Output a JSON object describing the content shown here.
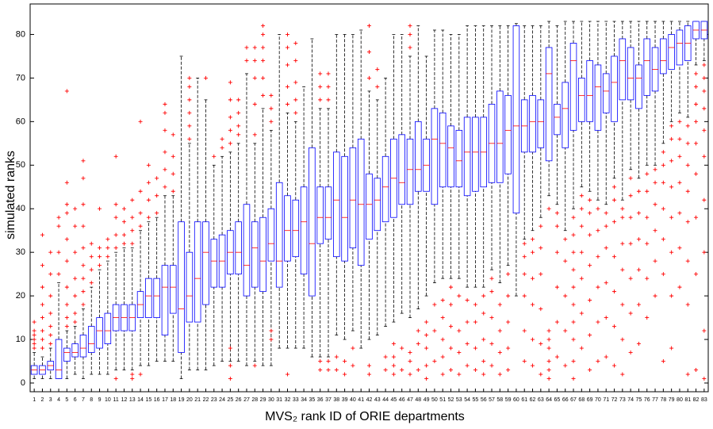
{
  "chart_data": {
    "type": "box",
    "xlabel": "MVS₂ rank ID of ORIE departments",
    "ylabel": "simulated ranks",
    "categories": [
      "1",
      "2",
      "3",
      "4",
      "5",
      "6",
      "7",
      "8",
      "9",
      "10",
      "11",
      "12",
      "13",
      "14",
      "15",
      "16",
      "17",
      "18",
      "19",
      "20",
      "21",
      "22",
      "23",
      "24",
      "25",
      "26",
      "27",
      "28",
      "29",
      "30",
      "31",
      "32",
      "33",
      "34",
      "35",
      "36",
      "37",
      "38",
      "39",
      "40",
      "41",
      "42",
      "43",
      "44",
      "45",
      "46",
      "47",
      "48",
      "49",
      "50",
      "51",
      "52",
      "53",
      "54",
      "55",
      "56",
      "57",
      "58",
      "59",
      "60",
      "61",
      "62",
      "63",
      "64",
      "65",
      "66",
      "67",
      "68",
      "69",
      "70",
      "71",
      "72",
      "73",
      "74",
      "75",
      "76",
      "77",
      "78",
      "79",
      "80",
      "81",
      "82",
      "83"
    ],
    "ylim": [
      -2,
      87
    ],
    "yticks": [
      0,
      10,
      20,
      30,
      40,
      50,
      60,
      70,
      80
    ],
    "box_color": "#0000ff",
    "median_color": "#ff0000",
    "whisker_color": "#000000",
    "flier_color": "#ff0000",
    "boxes": [
      {
        "whislo": 1,
        "q1": 2,
        "med": 3,
        "q3": 4,
        "whishi": 7,
        "fliers": [
          8,
          9,
          10,
          11,
          12,
          14
        ]
      },
      {
        "whislo": 1,
        "q1": 2,
        "med": 3,
        "q3": 4,
        "whishi": 6,
        "fliers": [
          8,
          10,
          12,
          15,
          18,
          22,
          27,
          34
        ]
      },
      {
        "whislo": 1,
        "q1": 3,
        "med": 4,
        "q3": 5,
        "whishi": 8,
        "fliers": [
          9,
          11,
          13,
          16,
          20,
          25,
          30
        ]
      },
      {
        "whislo": 1,
        "q1": 1,
        "med": 3,
        "q3": 10,
        "whishi": 23,
        "fliers": [
          25,
          30,
          36,
          38
        ]
      },
      {
        "whislo": 1,
        "q1": 5,
        "med": 7,
        "q3": 8,
        "whishi": 12,
        "fliers": [
          13,
          15,
          18,
          22,
          28,
          33,
          39,
          41,
          46,
          67
        ]
      },
      {
        "whislo": 2,
        "q1": 6,
        "med": 7,
        "q3": 9,
        "whishi": 13,
        "fliers": [
          14,
          16,
          20,
          24,
          30,
          36,
          40
        ]
      },
      {
        "whislo": 1,
        "q1": 6,
        "med": 8,
        "q3": 11,
        "whishi": 17,
        "fliers": [
          18,
          21,
          24,
          27,
          31,
          36,
          41,
          47,
          51
        ]
      },
      {
        "whislo": 2,
        "q1": 7,
        "med": 9,
        "q3": 13,
        "whishi": 22,
        "fliers": [
          23,
          26,
          29,
          32
        ]
      },
      {
        "whislo": 2,
        "q1": 8,
        "med": 12,
        "q3": 15,
        "whishi": 26,
        "fliers": [
          27,
          29,
          31,
          40
        ]
      },
      {
        "whislo": 2,
        "q1": 9,
        "med": 12,
        "q3": 16,
        "whishi": 28,
        "fliers": [
          29,
          31,
          33
        ]
      },
      {
        "whislo": 3,
        "q1": 12,
        "med": 15,
        "q3": 18,
        "whishi": 30,
        "fliers": [
          1,
          31,
          34,
          38,
          41,
          52
        ]
      },
      {
        "whislo": 3,
        "q1": 12,
        "med": 15,
        "q3": 18,
        "whishi": 31,
        "fliers": [
          32,
          34,
          37,
          40
        ]
      },
      {
        "whislo": 3,
        "q1": 12,
        "med": 15,
        "q3": 18,
        "whishi": 31,
        "fliers": [
          1,
          2,
          32,
          35,
          38,
          42
        ]
      },
      {
        "whislo": 4,
        "q1": 15,
        "med": 18,
        "q3": 21,
        "whishi": 35,
        "fliers": [
          2,
          36,
          39,
          44,
          60
        ]
      },
      {
        "whislo": 4,
        "q1": 15,
        "med": 20,
        "q3": 24,
        "whishi": 37,
        "fliers": [
          38,
          42,
          46,
          50
        ]
      },
      {
        "whislo": 5,
        "q1": 15,
        "med": 20,
        "q3": 24,
        "whishi": 38,
        "fliers": [
          39,
          43,
          47
        ]
      },
      {
        "whislo": 5,
        "q1": 11,
        "med": 22,
        "q3": 27,
        "whishi": 43,
        "fliers": [
          45,
          49,
          53,
          58,
          62,
          64
        ]
      },
      {
        "whislo": 5,
        "q1": 16,
        "med": 22,
        "q3": 27,
        "whishi": 43,
        "fliers": [
          44,
          48,
          52,
          57
        ]
      },
      {
        "whislo": 1,
        "q1": 7,
        "med": 17,
        "q3": 37,
        "whishi": 75,
        "fliers": []
      },
      {
        "whislo": 3,
        "q1": 14,
        "med": 20,
        "q3": 30,
        "whishi": 55,
        "fliers": [
          56,
          59,
          62,
          65,
          68,
          70
        ]
      },
      {
        "whislo": 3,
        "q1": 14,
        "med": 24,
        "q3": 37,
        "whishi": 70,
        "fliers": []
      },
      {
        "whislo": 3,
        "q1": 18,
        "med": 30,
        "q3": 37,
        "whishi": 65,
        "fliers": [
          70
        ]
      },
      {
        "whislo": 4,
        "q1": 22,
        "med": 28,
        "q3": 33,
        "whishi": 50,
        "fliers": [
          52
        ]
      },
      {
        "whislo": 5,
        "q1": 22,
        "med": 28,
        "q3": 34,
        "whishi": 52,
        "fliers": [
          54,
          56
        ]
      },
      {
        "whislo": 5,
        "q1": 25,
        "med": 30,
        "q3": 35,
        "whishi": 53,
        "fliers": [
          1,
          4,
          8,
          55,
          58,
          61,
          65,
          69
        ]
      },
      {
        "whislo": 5,
        "q1": 25,
        "med": 30,
        "q3": 37,
        "whishi": 55,
        "fliers": [
          57,
          59,
          62,
          65
        ]
      },
      {
        "whislo": 4,
        "q1": 20,
        "med": 27,
        "q3": 41,
        "whishi": 71,
        "fliers": [
          74,
          77
        ]
      },
      {
        "whislo": 5,
        "q1": 22,
        "med": 31,
        "q3": 37,
        "whishi": 55,
        "fliers": [
          4,
          57,
          64,
          70,
          74,
          77
        ]
      },
      {
        "whislo": 4,
        "q1": 21,
        "med": 28,
        "q3": 38,
        "whishi": 63,
        "fliers": [
          66,
          70,
          74,
          77,
          80,
          82
        ]
      },
      {
        "whislo": 4,
        "q1": 28,
        "med": 32,
        "q3": 40,
        "whishi": 58,
        "fliers": [
          10,
          12,
          60,
          63,
          66
        ]
      },
      {
        "whislo": 8,
        "q1": 22,
        "med": 28,
        "q3": 46,
        "whishi": 80,
        "fliers": []
      },
      {
        "whislo": 8,
        "q1": 28,
        "med": 35,
        "q3": 43,
        "whishi": 62,
        "fliers": [
          2,
          64,
          68,
          73,
          77,
          80
        ]
      },
      {
        "whislo": 8,
        "q1": 29,
        "med": 35,
        "q3": 42,
        "whishi": 60,
        "fliers": [
          62,
          65,
          69,
          74,
          78
        ]
      },
      {
        "whislo": 8,
        "q1": 25,
        "med": 37,
        "q3": 45,
        "whishi": 68,
        "fliers": []
      },
      {
        "whislo": 6,
        "q1": 20,
        "med": 32,
        "q3": 54,
        "whishi": 79,
        "fliers": []
      },
      {
        "whislo": 6,
        "q1": 32,
        "med": 38,
        "q3": 45,
        "whishi": 63,
        "fliers": [
          3,
          5,
          65,
          68,
          71
        ]
      },
      {
        "whislo": 6,
        "q1": 33,
        "med": 38,
        "q3": 45,
        "whishi": 63,
        "fliers": [
          3,
          5,
          65,
          68,
          71
        ]
      },
      {
        "whislo": 11,
        "q1": 29,
        "med": 42,
        "q3": 53,
        "whishi": 80,
        "fliers": [
          3,
          6
        ]
      },
      {
        "whislo": 10,
        "q1": 28,
        "med": 38,
        "q3": 52,
        "whishi": 80,
        "fliers": [
          2,
          5
        ]
      },
      {
        "whislo": 12,
        "q1": 31,
        "med": 42,
        "q3": 54,
        "whishi": 80,
        "fliers": [
          4,
          8
        ]
      },
      {
        "whislo": 8,
        "q1": 27,
        "med": 41,
        "q3": 56,
        "whishi": 81,
        "fliers": []
      },
      {
        "whislo": 10,
        "q1": 33,
        "med": 41,
        "q3": 48,
        "whishi": 67,
        "fliers": [
          2,
          4,
          70,
          76,
          82
        ]
      },
      {
        "whislo": 11,
        "q1": 35,
        "med": 42,
        "q3": 47,
        "whishi": 65,
        "fliers": [
          68,
          72
        ]
      },
      {
        "whislo": 13,
        "q1": 37,
        "med": 45,
        "q3": 52,
        "whishi": 70,
        "fliers": [
          3,
          6
        ]
      },
      {
        "whislo": 14,
        "q1": 38,
        "med": 47,
        "q3": 56,
        "whishi": 80,
        "fliers": [
          2,
          4,
          6,
          9
        ]
      },
      {
        "whislo": 16,
        "q1": 41,
        "med": 46,
        "q3": 57,
        "whishi": 80,
        "fliers": [
          3,
          8
        ]
      },
      {
        "whislo": 15,
        "q1": 41,
        "med": 49,
        "q3": 56,
        "whishi": 75,
        "fliers": [
          2,
          5,
          7,
          77,
          80,
          82
        ]
      },
      {
        "whislo": 17,
        "q1": 44,
        "med": 49,
        "q3": 60,
        "whishi": 82,
        "fliers": [
          3,
          9,
          12
        ]
      },
      {
        "whislo": 20,
        "q1": 44,
        "med": 50,
        "q3": 56,
        "whishi": 75,
        "fliers": [
          1,
          4,
          8,
          11,
          14
        ]
      },
      {
        "whislo": 23,
        "q1": 41,
        "med": 56,
        "q3": 63,
        "whishi": 81,
        "fliers": [
          5,
          12,
          18
        ]
      },
      {
        "whislo": 24,
        "q1": 45,
        "med": 55,
        "q3": 62,
        "whishi": 81,
        "fliers": [
          2,
          6,
          10,
          15,
          19
        ]
      },
      {
        "whislo": 24,
        "q1": 45,
        "med": 54,
        "q3": 59,
        "whishi": 80,
        "fliers": [
          3,
          8,
          13,
          18,
          22
        ]
      },
      {
        "whislo": 24,
        "q1": 45,
        "med": 51,
        "q3": 58,
        "whishi": 80,
        "fliers": [
          2,
          7,
          12,
          20
        ]
      },
      {
        "whislo": 22,
        "q1": 43,
        "med": 53,
        "q3": 61,
        "whishi": 82,
        "fliers": [
          4,
          9,
          14,
          19
        ]
      },
      {
        "whislo": 22,
        "q1": 44,
        "med": 53,
        "q3": 61,
        "whishi": 82,
        "fliers": [
          3,
          8,
          14,
          18
        ]
      },
      {
        "whislo": 22,
        "q1": 45,
        "med": 53,
        "q3": 61,
        "whishi": 82,
        "fliers": [
          2,
          5,
          10,
          16,
          20
        ]
      },
      {
        "whislo": 26,
        "q1": 46,
        "med": 55,
        "q3": 64,
        "whishi": 82,
        "fliers": [
          4,
          9,
          15,
          21,
          24
        ]
      },
      {
        "whislo": 23,
        "q1": 46,
        "med": 55,
        "q3": 67,
        "whishi": 82,
        "fliers": [
          2,
          7,
          12,
          18
        ]
      },
      {
        "whislo": 27,
        "q1": 48,
        "med": 58,
        "q3": 66,
        "whishi": 82,
        "fliers": [
          3,
          8,
          14,
          20,
          25
        ]
      },
      {
        "whislo": 20,
        "q1": 39,
        "med": 59,
        "q3": 82,
        "whishi": 82.5,
        "fliers": []
      },
      {
        "whislo": 33,
        "q1": 53,
        "med": 59,
        "q3": 65,
        "whishi": 82,
        "fliers": [
          5,
          12,
          20,
          25,
          29,
          32
        ]
      },
      {
        "whislo": 35,
        "q1": 53,
        "med": 60,
        "q3": 66,
        "whishi": 82,
        "fliers": [
          4,
          10,
          18,
          24,
          30,
          33
        ]
      },
      {
        "whislo": 38,
        "q1": 54,
        "med": 60,
        "q3": 65,
        "whishi": 82,
        "fliers": [
          2,
          9,
          17,
          25,
          31,
          36
        ]
      },
      {
        "whislo": 43,
        "q1": 51,
        "med": 71,
        "q3": 77,
        "whishi": 83,
        "fliers": [
          1,
          3,
          5,
          8,
          10,
          12,
          40
        ]
      },
      {
        "whislo": 41,
        "q1": 57,
        "med": 61,
        "q3": 64,
        "whishi": 82,
        "fliers": [
          6,
          14,
          22,
          30,
          36,
          39
        ]
      },
      {
        "whislo": 35,
        "q1": 54,
        "med": 63,
        "q3": 69,
        "whishi": 83,
        "fliers": [
          4,
          12,
          20,
          28,
          33
        ]
      },
      {
        "whislo": 40,
        "q1": 58,
        "med": 74,
        "q3": 78,
        "whishi": 83,
        "fliers": [
          1,
          5,
          10,
          14,
          18,
          22,
          26,
          30,
          34,
          38
        ]
      },
      {
        "whislo": 45,
        "q1": 60,
        "med": 66,
        "q3": 70,
        "whishi": 83,
        "fliers": [
          8,
          16,
          24,
          30,
          36,
          40,
          43
        ]
      },
      {
        "whislo": 44,
        "q1": 60,
        "med": 66,
        "q3": 74,
        "whishi": 83,
        "fliers": [
          3,
          11,
          19,
          27,
          34,
          39,
          42
        ]
      },
      {
        "whislo": 42,
        "q1": 58,
        "med": 68,
        "q3": 73,
        "whishi": 83,
        "fliers": [
          5,
          14,
          22,
          29,
          35,
          40
        ]
      },
      {
        "whislo": 41,
        "q1": 62,
        "med": 67,
        "q3": 71,
        "whishi": 83,
        "fliers": [
          6,
          15,
          23,
          31,
          36,
          39
        ]
      },
      {
        "whislo": 47,
        "q1": 60,
        "med": 69,
        "q3": 75,
        "whishi": 83,
        "fliers": [
          4,
          13,
          21,
          29,
          37,
          42,
          45
        ]
      },
      {
        "whislo": 42,
        "q1": 65,
        "med": 74,
        "q3": 79,
        "whishi": 83,
        "fliers": [
          2,
          10,
          18,
          26,
          32,
          38,
          40
        ]
      },
      {
        "whislo": 49,
        "q1": 65,
        "med": 70,
        "q3": 77,
        "whishi": 83,
        "fliers": [
          7,
          16,
          24,
          32,
          38,
          43,
          47
        ]
      },
      {
        "whislo": 47,
        "q1": 63,
        "med": 70,
        "q3": 73,
        "whishi": 83,
        "fliers": [
          9,
          18,
          26,
          33,
          39,
          44
        ]
      },
      {
        "whislo": 50,
        "q1": 66,
        "med": 74,
        "q3": 79,
        "whishi": 83,
        "fliers": [
          15,
          24,
          32,
          38,
          44,
          48
        ]
      },
      {
        "whislo": 50,
        "q1": 67,
        "med": 72,
        "q3": 77,
        "whishi": 83,
        "fliers": [
          20,
          28,
          35,
          41,
          46,
          49
        ]
      },
      {
        "whislo": 55,
        "q1": 71,
        "med": 74,
        "q3": 79,
        "whishi": 83,
        "fliers": [
          5,
          25,
          33,
          40,
          46,
          50,
          53
        ]
      },
      {
        "whislo": 60,
        "q1": 72,
        "med": 77,
        "q3": 80,
        "whishi": 83,
        "fliers": [
          8,
          20,
          30,
          38,
          45,
          51,
          56,
          59
        ]
      },
      {
        "whislo": 62,
        "q1": 73,
        "med": 78,
        "q3": 81,
        "whishi": 83,
        "fliers": [
          22,
          31,
          39,
          46,
          52,
          56,
          60
        ]
      },
      {
        "whislo": 61,
        "q1": 74,
        "med": 78,
        "q3": 82,
        "whishi": 83,
        "fliers": [
          2,
          18,
          28,
          37,
          44,
          50,
          55,
          59
        ]
      },
      {
        "whislo": 73,
        "q1": 79,
        "med": 81,
        "q3": 83,
        "whishi": 83,
        "fliers": [
          3,
          25,
          38,
          48,
          55,
          60,
          64,
          68,
          71
        ]
      },
      {
        "whislo": 74,
        "q1": 79,
        "med": 81,
        "q3": 83,
        "whishi": 83,
        "fliers": [
          1,
          12,
          30,
          42,
          52,
          58,
          63,
          67,
          70,
          73
        ]
      }
    ]
  }
}
